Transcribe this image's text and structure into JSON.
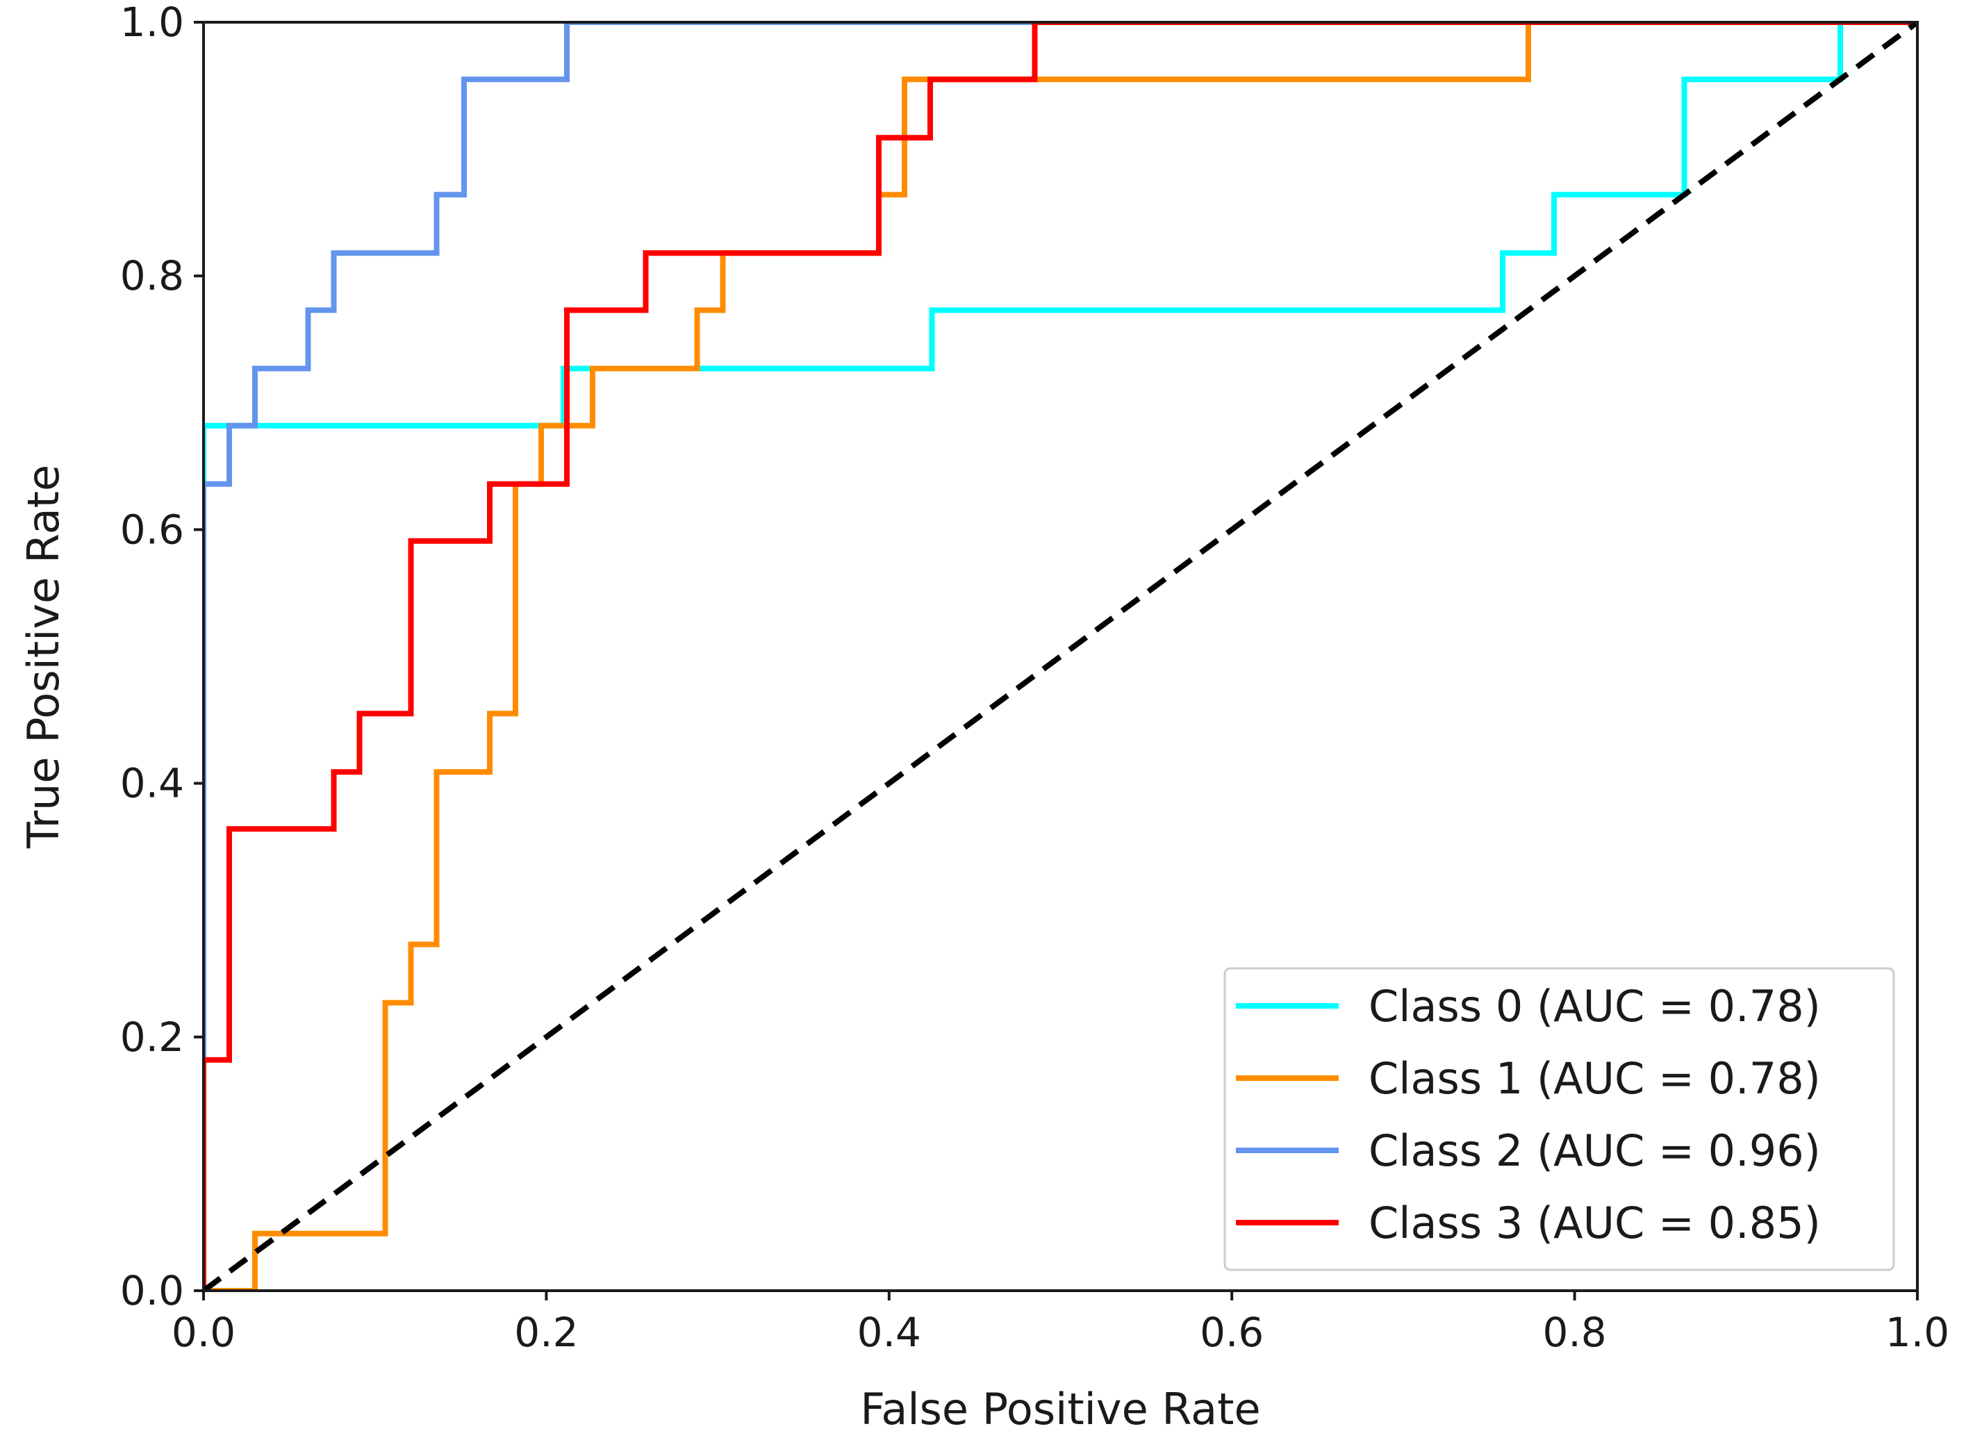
{
  "chart_data": {
    "type": "line",
    "title": "",
    "xlabel": "False Positive Rate",
    "ylabel": "True Positive Rate",
    "xlim": [
      0.0,
      1.0
    ],
    "ylim": [
      0.0,
      1.0
    ],
    "xticks": [
      0.0,
      0.2,
      0.4,
      0.6,
      0.8,
      1.0
    ],
    "yticks": [
      0.0,
      0.2,
      0.4,
      0.6,
      0.8,
      1.0
    ],
    "xtick_labels": [
      "0.0",
      "0.2",
      "0.4",
      "0.6",
      "0.8",
      "1.0"
    ],
    "ytick_labels": [
      "0.0",
      "0.2",
      "0.4",
      "0.6",
      "0.8",
      "1.0"
    ],
    "grid": false,
    "legend_position": "lower-right",
    "series": [
      {
        "name": "Class 0 (AUC = 0.78)",
        "color": "#00ffff",
        "x": [
          0.0,
          0.0,
          0.21,
          0.21,
          0.425,
          0.425,
          0.758,
          0.758,
          0.788,
          0.788,
          0.864,
          0.864,
          0.955,
          0.955,
          1.0
        ],
        "y": [
          0.0,
          0.682,
          0.682,
          0.727,
          0.727,
          0.773,
          0.773,
          0.818,
          0.818,
          0.864,
          0.864,
          0.955,
          0.955,
          1.0,
          1.0
        ]
      },
      {
        "name": "Class 1 (AUC = 0.78)",
        "color": "#ff8c00",
        "x": [
          0.0,
          0.03,
          0.03,
          0.106,
          0.106,
          0.121,
          0.121,
          0.136,
          0.136,
          0.167,
          0.167,
          0.182,
          0.182,
          0.197,
          0.197,
          0.227,
          0.227,
          0.288,
          0.288,
          0.303,
          0.303,
          0.318,
          0.318,
          0.394,
          0.394,
          0.409,
          0.409,
          0.773,
          0.773,
          1.0
        ],
        "y": [
          0.0,
          0.0,
          0.045,
          0.045,
          0.227,
          0.227,
          0.273,
          0.273,
          0.409,
          0.409,
          0.455,
          0.455,
          0.636,
          0.636,
          0.682,
          0.682,
          0.727,
          0.727,
          0.773,
          0.773,
          0.818,
          0.818,
          0.818,
          0.818,
          0.864,
          0.864,
          0.955,
          0.955,
          1.0,
          1.0
        ]
      },
      {
        "name": "Class 2 (AUC = 0.96)",
        "color": "#6495ed",
        "x": [
          0.0,
          0.0,
          0.015,
          0.015,
          0.03,
          0.03,
          0.061,
          0.061,
          0.076,
          0.076,
          0.136,
          0.136,
          0.152,
          0.152,
          0.212,
          0.212,
          0.485,
          1.0
        ],
        "y": [
          0.0,
          0.636,
          0.636,
          0.682,
          0.682,
          0.727,
          0.727,
          0.773,
          0.773,
          0.818,
          0.818,
          0.864,
          0.864,
          0.955,
          0.955,
          1.0,
          1.0,
          1.0
        ]
      },
      {
        "name": "Class 3 (AUC = 0.85)",
        "color": "#ff0000",
        "x": [
          0.0,
          0.0,
          0.015,
          0.015,
          0.076,
          0.076,
          0.091,
          0.091,
          0.121,
          0.121,
          0.167,
          0.167,
          0.212,
          0.212,
          0.258,
          0.258,
          0.394,
          0.394,
          0.424,
          0.424,
          0.485,
          0.485,
          1.0
        ],
        "y": [
          0.0,
          0.182,
          0.182,
          0.364,
          0.364,
          0.409,
          0.409,
          0.455,
          0.455,
          0.591,
          0.591,
          0.636,
          0.636,
          0.773,
          0.773,
          0.818,
          0.818,
          0.909,
          0.909,
          0.955,
          0.955,
          1.0,
          1.0
        ]
      }
    ],
    "reference_line": {
      "name": "chance",
      "color": "#000000",
      "style": "dashed",
      "x": [
        0.0,
        1.0
      ],
      "y": [
        0.0,
        1.0
      ]
    }
  }
}
